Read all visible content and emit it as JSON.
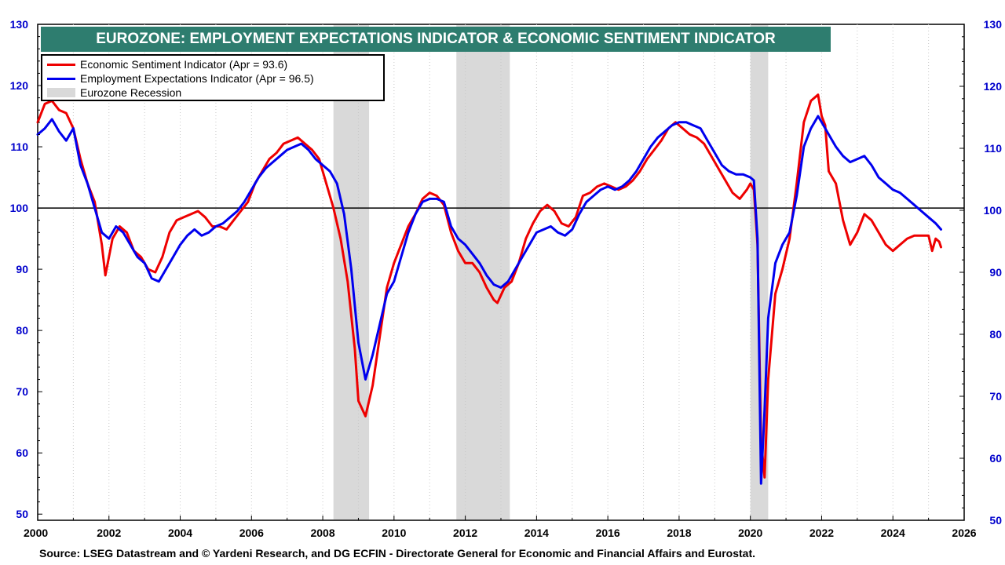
{
  "chart_data": {
    "type": "line",
    "title": "EUROZONE: EMPLOYMENT EXPECTATIONS INDICATOR & ECONOMIC SENTIMENT INDICATOR",
    "source": "Source: LSEG Datastream and © Yardeni Research, and DG ECFIN - Directorate General for Economic and Financial Affairs and Eurostat.",
    "x_range": [
      2000,
      2026
    ],
    "x_ticks": [
      "2000",
      "2002",
      "2004",
      "2006",
      "2008",
      "2010",
      "2012",
      "2014",
      "2016",
      "2018",
      "2020",
      "2022",
      "2024",
      "2026"
    ],
    "left_axis": {
      "range": [
        49,
        130
      ],
      "ticks": [
        "50",
        "60",
        "70",
        "80",
        "90",
        "100",
        "110",
        "120",
        "130"
      ],
      "color": "#0000cc"
    },
    "right_axis": {
      "range": [
        50,
        130
      ],
      "ticks": [
        "50",
        "60",
        "70",
        "80",
        "90",
        "100",
        "110",
        "120",
        "130"
      ],
      "color": "#0000cc"
    },
    "reference_line": 100,
    "recessions": [
      {
        "label": "2008Q2–2009Q2",
        "start": 2008.3,
        "end": 2009.3
      },
      {
        "label": "2011Q4–2013Q1",
        "start": 2011.75,
        "end": 2013.25
      },
      {
        "label": "2020Q1–2020Q2",
        "start": 2020.0,
        "end": 2020.5
      }
    ],
    "legend": {
      "esi": "Economic Sentiment Indicator (Apr = 93.6)",
      "eei": "Employment Expectations Indicator (Apr = 96.5)",
      "recession": "Eurozone Recession"
    },
    "series": [
      {
        "name": "Economic Sentiment Indicator",
        "color": "#ee0000",
        "points": [
          [
            2000.0,
            114
          ],
          [
            2000.2,
            117
          ],
          [
            2000.4,
            117.5
          ],
          [
            2000.6,
            116
          ],
          [
            2000.8,
            115.5
          ],
          [
            2001.0,
            113
          ],
          [
            2001.2,
            108
          ],
          [
            2001.4,
            104
          ],
          [
            2001.6,
            101
          ],
          [
            2001.8,
            94
          ],
          [
            2001.9,
            89
          ],
          [
            2002.1,
            95
          ],
          [
            2002.3,
            97
          ],
          [
            2002.5,
            96
          ],
          [
            2002.7,
            93
          ],
          [
            2002.9,
            92
          ],
          [
            2003.1,
            90
          ],
          [
            2003.3,
            89.5
          ],
          [
            2003.5,
            92
          ],
          [
            2003.7,
            96
          ],
          [
            2003.9,
            98
          ],
          [
            2004.1,
            98.5
          ],
          [
            2004.3,
            99
          ],
          [
            2004.5,
            99.5
          ],
          [
            2004.7,
            98.5
          ],
          [
            2004.9,
            97
          ],
          [
            2005.1,
            97
          ],
          [
            2005.3,
            96.5
          ],
          [
            2005.5,
            98
          ],
          [
            2005.7,
            99.5
          ],
          [
            2005.9,
            101
          ],
          [
            2006.1,
            104
          ],
          [
            2006.3,
            106
          ],
          [
            2006.5,
            108
          ],
          [
            2006.7,
            109
          ],
          [
            2006.9,
            110.5
          ],
          [
            2007.1,
            111
          ],
          [
            2007.3,
            111.5
          ],
          [
            2007.5,
            110.5
          ],
          [
            2007.7,
            109.5
          ],
          [
            2007.9,
            108
          ],
          [
            2008.1,
            104
          ],
          [
            2008.3,
            100
          ],
          [
            2008.5,
            95
          ],
          [
            2008.7,
            88
          ],
          [
            2008.9,
            77
          ],
          [
            2009.0,
            68.5
          ],
          [
            2009.2,
            66
          ],
          [
            2009.4,
            71
          ],
          [
            2009.6,
            79
          ],
          [
            2009.8,
            87
          ],
          [
            2010.0,
            91
          ],
          [
            2010.2,
            94
          ],
          [
            2010.4,
            97
          ],
          [
            2010.6,
            99
          ],
          [
            2010.8,
            101.5
          ],
          [
            2011.0,
            102.5
          ],
          [
            2011.2,
            102
          ],
          [
            2011.4,
            100.5
          ],
          [
            2011.6,
            96
          ],
          [
            2011.8,
            93
          ],
          [
            2012.0,
            91
          ],
          [
            2012.2,
            91
          ],
          [
            2012.4,
            89.5
          ],
          [
            2012.6,
            87
          ],
          [
            2012.8,
            85
          ],
          [
            2012.9,
            84.5
          ],
          [
            2013.1,
            87
          ],
          [
            2013.3,
            88
          ],
          [
            2013.5,
            91
          ],
          [
            2013.7,
            95
          ],
          [
            2013.9,
            97.5
          ],
          [
            2014.1,
            99.5
          ],
          [
            2014.3,
            100.5
          ],
          [
            2014.5,
            99.5
          ],
          [
            2014.7,
            97.5
          ],
          [
            2014.9,
            97
          ],
          [
            2015.1,
            98.5
          ],
          [
            2015.3,
            102
          ],
          [
            2015.5,
            102.5
          ],
          [
            2015.7,
            103.5
          ],
          [
            2015.9,
            104
          ],
          [
            2016.1,
            103.5
          ],
          [
            2016.3,
            103
          ],
          [
            2016.5,
            103.5
          ],
          [
            2016.7,
            104.5
          ],
          [
            2016.9,
            106
          ],
          [
            2017.1,
            108
          ],
          [
            2017.3,
            109.5
          ],
          [
            2017.5,
            111
          ],
          [
            2017.7,
            113
          ],
          [
            2017.9,
            114
          ],
          [
            2018.1,
            113
          ],
          [
            2018.3,
            112
          ],
          [
            2018.5,
            111.5
          ],
          [
            2018.7,
            110.5
          ],
          [
            2018.9,
            108.5
          ],
          [
            2019.1,
            106.5
          ],
          [
            2019.3,
            104.5
          ],
          [
            2019.5,
            102.5
          ],
          [
            2019.7,
            101.5
          ],
          [
            2019.9,
            103
          ],
          [
            2020.0,
            104
          ],
          [
            2020.1,
            103
          ],
          [
            2020.2,
            94
          ],
          [
            2020.3,
            62
          ],
          [
            2020.4,
            56
          ],
          [
            2020.5,
            72
          ],
          [
            2020.7,
            86
          ],
          [
            2020.9,
            90
          ],
          [
            2021.1,
            95
          ],
          [
            2021.3,
            104
          ],
          [
            2021.5,
            114
          ],
          [
            2021.7,
            117.5
          ],
          [
            2021.9,
            118.5
          ],
          [
            2022.0,
            115
          ],
          [
            2022.1,
            113.5
          ],
          [
            2022.2,
            106
          ],
          [
            2022.4,
            104
          ],
          [
            2022.6,
            98
          ],
          [
            2022.8,
            94
          ],
          [
            2023.0,
            96
          ],
          [
            2023.2,
            99
          ],
          [
            2023.4,
            98
          ],
          [
            2023.6,
            96
          ],
          [
            2023.8,
            94
          ],
          [
            2024.0,
            93
          ],
          [
            2024.2,
            94
          ],
          [
            2024.4,
            95
          ],
          [
            2024.6,
            95.5
          ],
          [
            2024.8,
            95.5
          ],
          [
            2025.0,
            95.5
          ],
          [
            2025.1,
            93
          ],
          [
            2025.2,
            95
          ],
          [
            2025.3,
            94.5
          ],
          [
            2025.35,
            93.6
          ]
        ]
      },
      {
        "name": "Employment Expectations Indicator",
        "color": "#0000ee",
        "points": [
          [
            2000.0,
            112
          ],
          [
            2000.2,
            113
          ],
          [
            2000.4,
            114.5
          ],
          [
            2000.6,
            112.5
          ],
          [
            2000.8,
            111
          ],
          [
            2001.0,
            113
          ],
          [
            2001.2,
            107
          ],
          [
            2001.4,
            104
          ],
          [
            2001.6,
            100
          ],
          [
            2001.8,
            96
          ],
          [
            2002.0,
            95
          ],
          [
            2002.2,
            97
          ],
          [
            2002.4,
            96
          ],
          [
            2002.6,
            94
          ],
          [
            2002.8,
            92
          ],
          [
            2003.0,
            91
          ],
          [
            2003.2,
            88.5
          ],
          [
            2003.4,
            88
          ],
          [
            2003.6,
            90
          ],
          [
            2003.8,
            92
          ],
          [
            2004.0,
            94
          ],
          [
            2004.2,
            95.5
          ],
          [
            2004.4,
            96.5
          ],
          [
            2004.6,
            95.5
          ],
          [
            2004.8,
            96
          ],
          [
            2005.0,
            97
          ],
          [
            2005.2,
            97.5
          ],
          [
            2005.4,
            98.5
          ],
          [
            2005.6,
            99.5
          ],
          [
            2005.8,
            101
          ],
          [
            2006.0,
            103
          ],
          [
            2006.2,
            105
          ],
          [
            2006.4,
            106.5
          ],
          [
            2006.6,
            107.5
          ],
          [
            2006.8,
            108.5
          ],
          [
            2007.0,
            109.5
          ],
          [
            2007.2,
            110
          ],
          [
            2007.4,
            110.5
          ],
          [
            2007.6,
            109.5
          ],
          [
            2007.8,
            108
          ],
          [
            2008.0,
            107
          ],
          [
            2008.2,
            106
          ],
          [
            2008.4,
            104
          ],
          [
            2008.6,
            99
          ],
          [
            2008.8,
            90
          ],
          [
            2009.0,
            78
          ],
          [
            2009.2,
            72
          ],
          [
            2009.4,
            76
          ],
          [
            2009.6,
            81
          ],
          [
            2009.8,
            86
          ],
          [
            2010.0,
            88
          ],
          [
            2010.2,
            92
          ],
          [
            2010.4,
            96
          ],
          [
            2010.6,
            99
          ],
          [
            2010.8,
            101
          ],
          [
            2011.0,
            101.5
          ],
          [
            2011.2,
            101.5
          ],
          [
            2011.4,
            101
          ],
          [
            2011.6,
            97
          ],
          [
            2011.8,
            95
          ],
          [
            2012.0,
            94
          ],
          [
            2012.2,
            92.5
          ],
          [
            2012.4,
            91
          ],
          [
            2012.6,
            89
          ],
          [
            2012.8,
            87.5
          ],
          [
            2013.0,
            87
          ],
          [
            2013.2,
            88
          ],
          [
            2013.4,
            90
          ],
          [
            2013.6,
            92
          ],
          [
            2013.8,
            94
          ],
          [
            2014.0,
            96
          ],
          [
            2014.2,
            96.5
          ],
          [
            2014.4,
            97
          ],
          [
            2014.6,
            96
          ],
          [
            2014.8,
            95.5
          ],
          [
            2015.0,
            96.5
          ],
          [
            2015.2,
            99
          ],
          [
            2015.4,
            101
          ],
          [
            2015.6,
            102
          ],
          [
            2015.8,
            103
          ],
          [
            2016.0,
            103.5
          ],
          [
            2016.2,
            103
          ],
          [
            2016.4,
            103.5
          ],
          [
            2016.6,
            104.5
          ],
          [
            2016.8,
            106
          ],
          [
            2017.0,
            108
          ],
          [
            2017.2,
            110
          ],
          [
            2017.4,
            111.5
          ],
          [
            2017.6,
            112.5
          ],
          [
            2017.8,
            113.5
          ],
          [
            2018.0,
            114
          ],
          [
            2018.2,
            114
          ],
          [
            2018.4,
            113.5
          ],
          [
            2018.6,
            113
          ],
          [
            2018.8,
            111
          ],
          [
            2019.0,
            109
          ],
          [
            2019.2,
            107
          ],
          [
            2019.4,
            106
          ],
          [
            2019.6,
            105.5
          ],
          [
            2019.8,
            105.5
          ],
          [
            2020.0,
            105
          ],
          [
            2020.1,
            104.5
          ],
          [
            2020.2,
            95
          ],
          [
            2020.3,
            55
          ],
          [
            2020.4,
            67
          ],
          [
            2020.5,
            82
          ],
          [
            2020.7,
            91
          ],
          [
            2020.9,
            94
          ],
          [
            2021.1,
            96
          ],
          [
            2021.3,
            102
          ],
          [
            2021.5,
            110
          ],
          [
            2021.7,
            113
          ],
          [
            2021.9,
            115
          ],
          [
            2022.0,
            114
          ],
          [
            2022.2,
            112
          ],
          [
            2022.4,
            110
          ],
          [
            2022.6,
            108.5
          ],
          [
            2022.8,
            107.5
          ],
          [
            2023.0,
            108
          ],
          [
            2023.2,
            108.5
          ],
          [
            2023.4,
            107
          ],
          [
            2023.6,
            105
          ],
          [
            2023.8,
            104
          ],
          [
            2024.0,
            103
          ],
          [
            2024.2,
            102.5
          ],
          [
            2024.4,
            101.5
          ],
          [
            2024.6,
            100.5
          ],
          [
            2024.8,
            99.5
          ],
          [
            2025.0,
            98.5
          ],
          [
            2025.2,
            97.5
          ],
          [
            2025.35,
            96.5
          ]
        ]
      }
    ]
  }
}
